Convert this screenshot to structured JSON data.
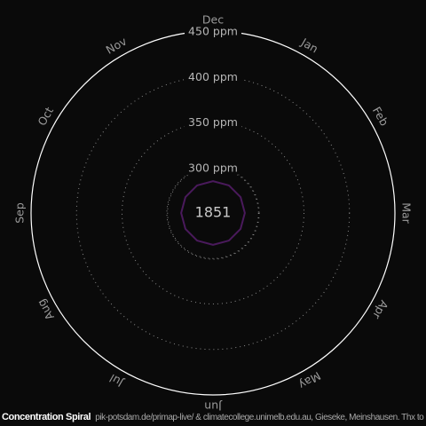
{
  "chart_data": {
    "type": "polar-spiral",
    "title": "Concentration Spiral",
    "credits": "pik-potsdam.de/primap-live/ & climatecollege.unimelb.edu.au, Gieseke, Meinshausen. Thx to Ed Hawkins",
    "year": "1851",
    "unit": "ppm",
    "radial_range": [
      250,
      450
    ],
    "rings": [
      {
        "value": 300,
        "label": "300 ppm",
        "style": "dotted"
      },
      {
        "value": 350,
        "label": "350 ppm",
        "style": "dotted"
      },
      {
        "value": 400,
        "label": "400 ppm",
        "style": "dotted"
      },
      {
        "value": 450,
        "label": "450 ppm",
        "style": "solid"
      }
    ],
    "months": [
      "Jan",
      "Feb",
      "Mar",
      "Apr",
      "May",
      "Jun",
      "Jul",
      "Aug",
      "Sep",
      "Oct",
      "Nov",
      "Dec"
    ],
    "series": [
      {
        "name": "1851",
        "values": [
          285,
          285,
          285,
          285,
          285,
          285,
          285,
          285,
          285,
          285,
          285,
          285
        ]
      }
    ],
    "colors": {
      "background": "#0a0a0a",
      "ring": "#8a8a8a",
      "outer_ring": "#ffffff",
      "series": "#4a1a5c",
      "labels": "#9a9a9a"
    }
  }
}
